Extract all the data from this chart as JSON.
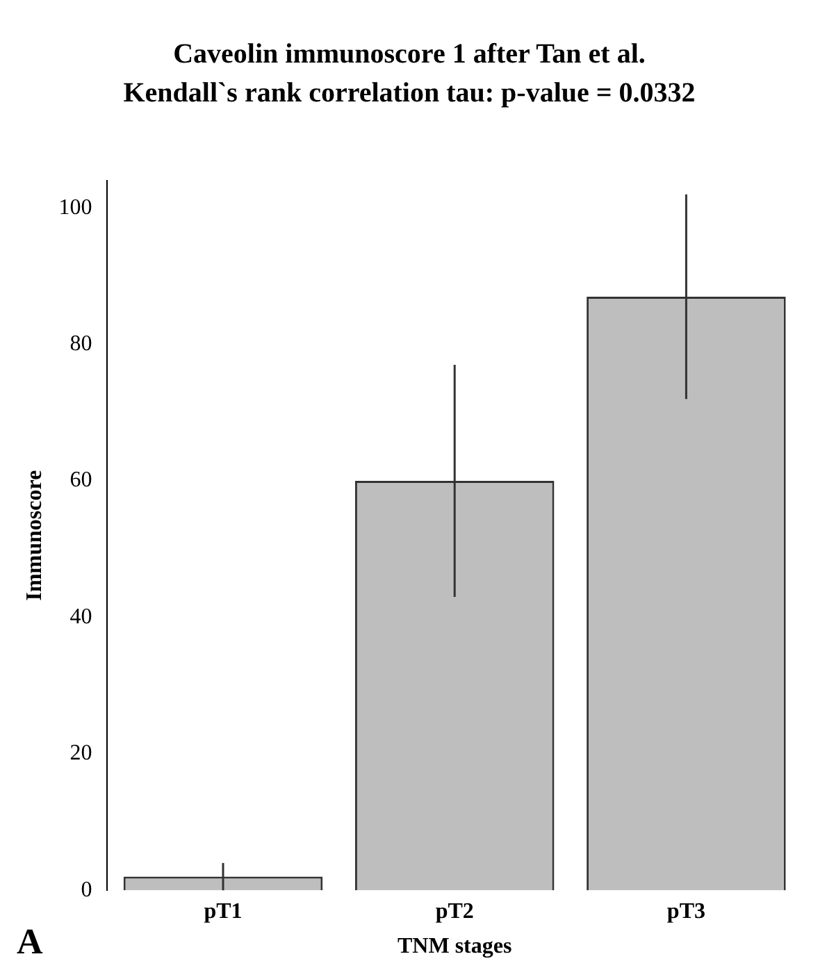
{
  "chart_data": {
    "type": "bar",
    "title": "Caveolin immunoscore 1 after Tan et al.",
    "subtitle": "Kendall`s rank correlation tau: p-value = 0.0332",
    "xlabel": "TNM stages",
    "ylabel": "Immunoscore",
    "categories": [
      "pT1",
      "pT2",
      "pT3"
    ],
    "values": [
      2,
      60,
      87
    ],
    "errors": [
      [
        0,
        4
      ],
      [
        43,
        77
      ],
      [
        72,
        102
      ]
    ],
    "color": "#bebebe",
    "ylim": [
      0,
      104
    ],
    "yticks": [
      0,
      20,
      40,
      60,
      80,
      100
    ],
    "grid": false,
    "legend": false,
    "annotations": [
      "A"
    ]
  }
}
